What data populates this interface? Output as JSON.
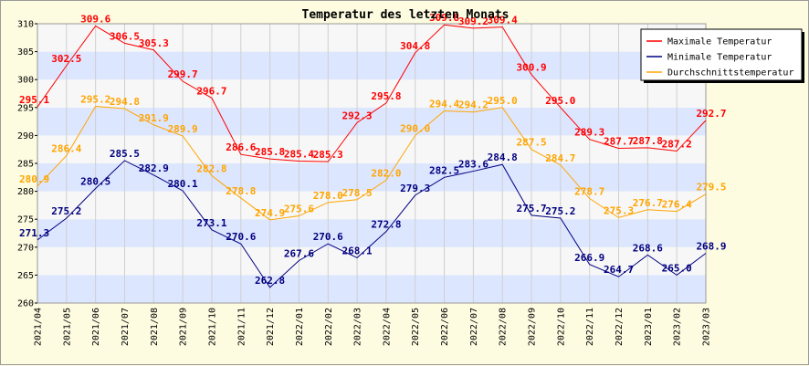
{
  "chart_data": {
    "type": "line",
    "title": "Temperatur des letzten Monats",
    "xlabel": "",
    "ylabel": "",
    "ylim": [
      260,
      310
    ],
    "yticks": [
      260,
      265,
      270,
      275,
      280,
      285,
      290,
      295,
      300,
      305,
      310
    ],
    "grid": true,
    "legend_position": "top-right",
    "categories": [
      "2021/04",
      "2021/05",
      "2021/06",
      "2021/07",
      "2021/08",
      "2021/09",
      "2021/10",
      "2021/11",
      "2021/12",
      "2022/01",
      "2022/02",
      "2022/03",
      "2022/04",
      "2022/05",
      "2022/06",
      "2022/07",
      "2022/08",
      "2022/09",
      "2022/10",
      "2022/11",
      "2022/12",
      "2023/01",
      "2023/02",
      "2023/03"
    ],
    "series": [
      {
        "name": "Maximale Temperatur",
        "color": "#ff0000",
        "values": [
          295.1,
          302.5,
          309.6,
          306.5,
          305.3,
          299.7,
          296.7,
          286.6,
          285.8,
          285.4,
          285.3,
          292.3,
          295.8,
          304.8,
          309.8,
          309.2,
          309.4,
          300.9,
          295.0,
          289.3,
          287.7,
          287.8,
          287.2,
          292.7
        ]
      },
      {
        "name": "Minimale Temperatur",
        "color": "#000080",
        "values": [
          271.3,
          275.2,
          280.5,
          285.5,
          282.9,
          280.1,
          273.1,
          270.6,
          262.8,
          267.6,
          270.6,
          268.1,
          272.8,
          279.3,
          282.5,
          283.6,
          284.8,
          275.7,
          275.2,
          266.9,
          264.7,
          268.6,
          265.0,
          268.9
        ]
      },
      {
        "name": "Durchschnittstemperatur",
        "color": "#ffa500",
        "values": [
          280.9,
          286.4,
          295.2,
          294.8,
          291.9,
          289.9,
          282.8,
          278.8,
          274.9,
          275.6,
          278.0,
          278.5,
          282.0,
          290.0,
          294.4,
          294.2,
          295.0,
          287.5,
          284.7,
          278.7,
          275.3,
          276.7,
          276.4,
          279.5
        ]
      }
    ]
  }
}
